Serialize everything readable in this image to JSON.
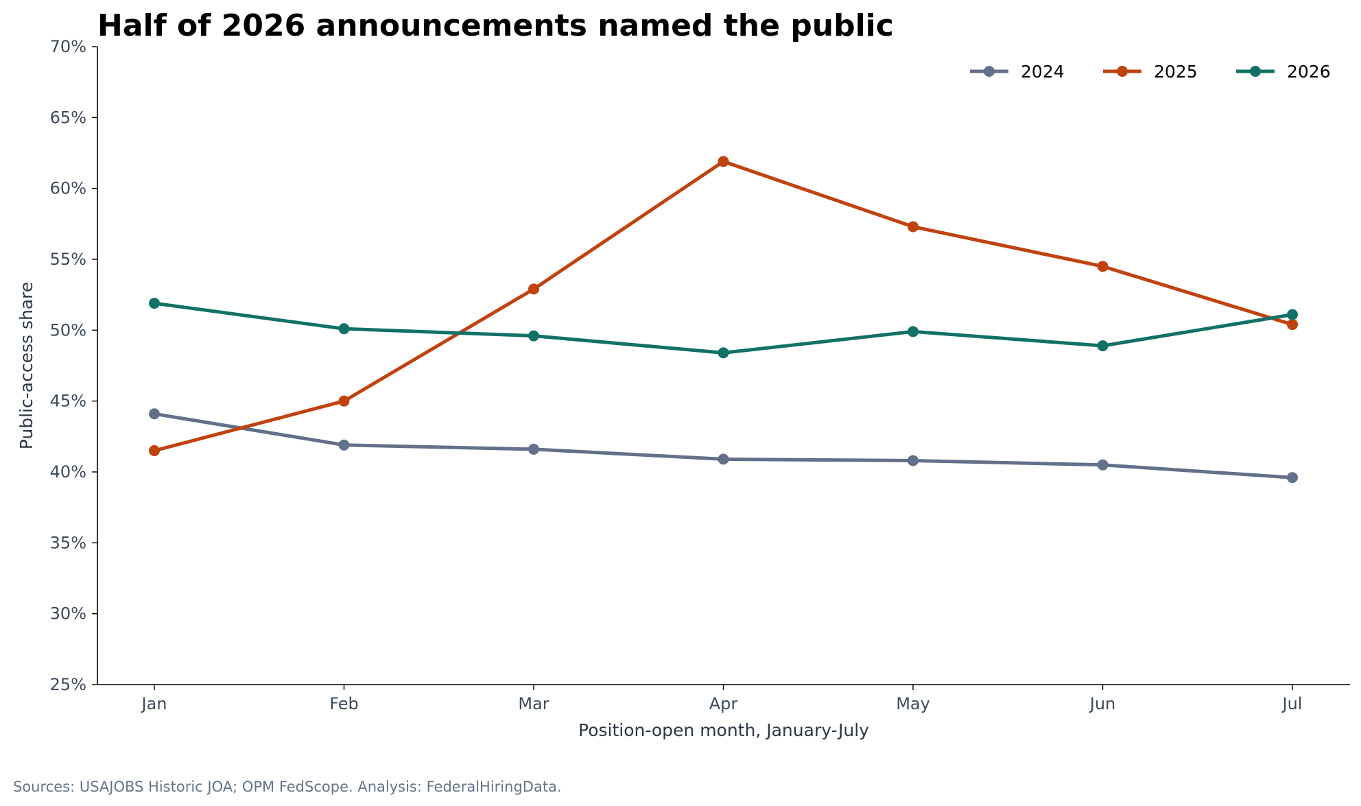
{
  "chart_data": {
    "type": "line",
    "title": "Half of 2026 announcements named the public",
    "xlabel": "Position-open month, January-July",
    "ylabel": "Public-access share",
    "categories": [
      "Jan",
      "Feb",
      "Mar",
      "Apr",
      "May",
      "Jun",
      "Jul"
    ],
    "ylim": [
      0.25,
      0.7
    ],
    "yticks": [
      "25%",
      "30%",
      "35%",
      "40%",
      "45%",
      "50%",
      "55%",
      "60%",
      "65%",
      "70%"
    ],
    "legend_position": "top-right",
    "grid": false,
    "series": [
      {
        "name": "2024",
        "color": "#627089",
        "values": [
          0.441,
          0.419,
          0.416,
          0.409,
          0.408,
          0.405,
          0.396
        ]
      },
      {
        "name": "2025",
        "color": "#c0420f",
        "values": [
          0.415,
          0.45,
          0.529,
          0.619,
          0.573,
          0.545,
          0.504
        ]
      },
      {
        "name": "2026",
        "color": "#127166",
        "values": [
          0.519,
          0.501,
          0.496,
          0.484,
          0.499,
          0.489,
          0.511
        ]
      }
    ],
    "source": "Sources: USAJOBS Historic JOA; OPM FedScope. Analysis: FederalHiringData."
  }
}
